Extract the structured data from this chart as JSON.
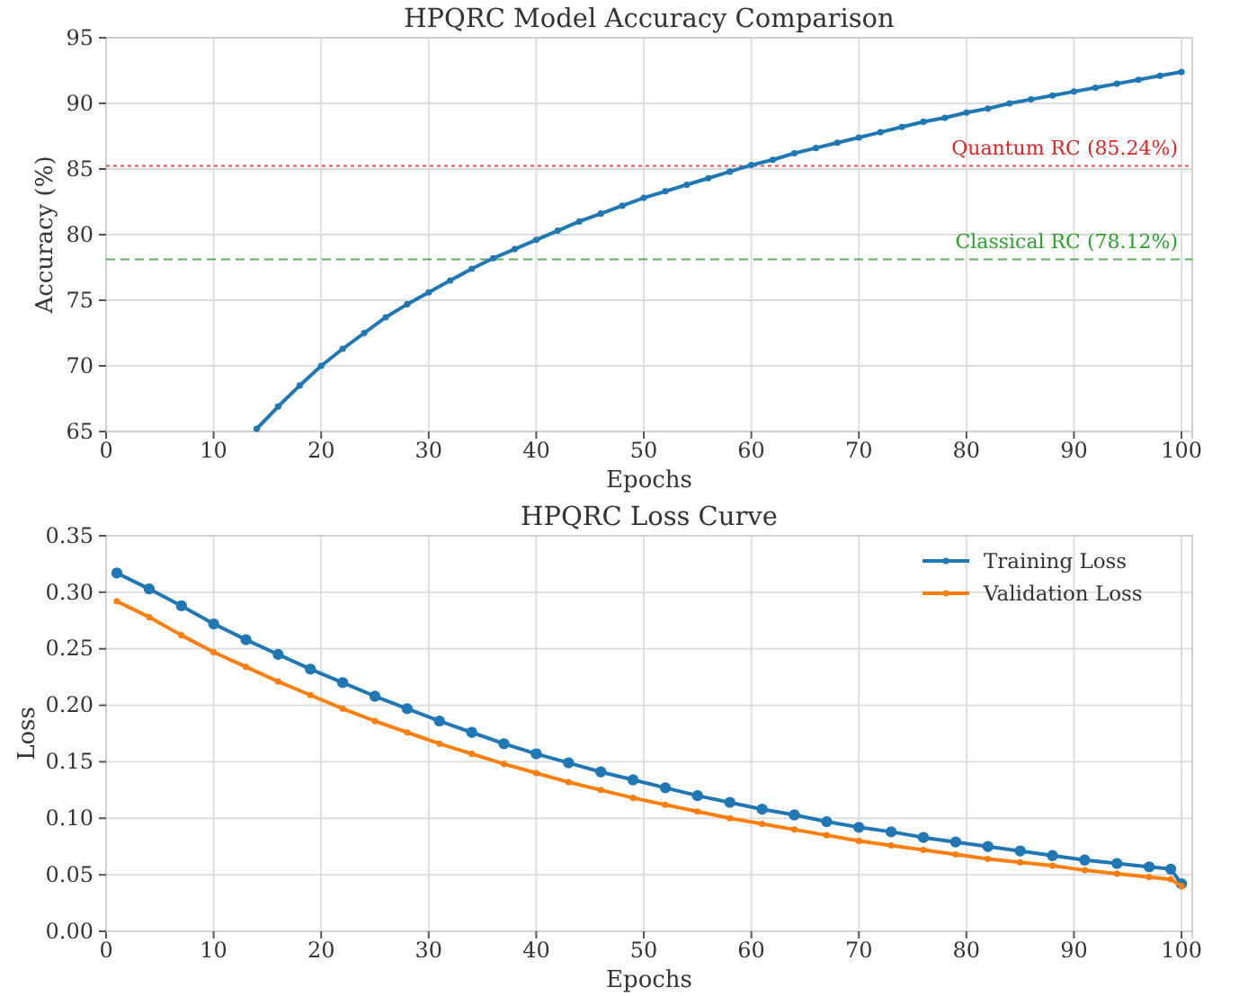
{
  "chart_data": [
    {
      "type": "line",
      "title": "HPQRC Model Accuracy Comparison",
      "xlabel": "Epochs",
      "ylabel": "Accuracy (%)",
      "x": [
        14,
        16,
        18,
        20,
        22,
        24,
        26,
        28,
        30,
        32,
        34,
        36,
        38,
        40,
        42,
        44,
        46,
        48,
        50,
        52,
        54,
        56,
        58,
        60,
        62,
        64,
        66,
        68,
        70,
        72,
        74,
        76,
        78,
        80,
        82,
        84,
        86,
        88,
        90,
        92,
        94,
        96,
        98,
        100
      ],
      "series": [
        {
          "color": "#1f77b4",
          "values": [
            65.2,
            66.9,
            68.5,
            70.0,
            71.3,
            72.5,
            73.7,
            74.7,
            75.6,
            76.5,
            77.4,
            78.2,
            78.9,
            79.6,
            80.3,
            81.0,
            81.6,
            82.2,
            82.8,
            83.3,
            83.8,
            84.3,
            84.8,
            85.3,
            85.7,
            86.2,
            86.6,
            87.0,
            87.4,
            87.8,
            88.2,
            88.6,
            88.9,
            89.3,
            89.6,
            90.0,
            90.3,
            90.6,
            90.9,
            91.2,
            91.5,
            91.8,
            92.1,
            92.4
          ]
        }
      ],
      "xlim": [
        0,
        101
      ],
      "xticks": [
        0,
        10,
        20,
        30,
        40,
        50,
        60,
        70,
        80,
        90,
        100
      ],
      "ylim": [
        65,
        95
      ],
      "yticks": [
        65,
        70,
        75,
        80,
        85,
        90,
        95
      ],
      "ref_lines": [
        {
          "axis": "y",
          "value": 85.24,
          "label": "Quantum RC (85.24%)",
          "color": "#d62728",
          "line_style": "dotted"
        },
        {
          "axis": "y",
          "value": 78.12,
          "label": "Classical RC (78.12%)",
          "color": "#2ca02c",
          "line_style": "dashed"
        }
      ],
      "grid": true,
      "marker": "circle",
      "line_style": "solid",
      "legend": false
    },
    {
      "type": "line",
      "title": "HPQRC Loss Curve",
      "xlabel": "Epochs",
      "ylabel": "Loss",
      "x": [
        1,
        4,
        7,
        10,
        13,
        16,
        19,
        22,
        25,
        28,
        31,
        34,
        37,
        40,
        43,
        46,
        49,
        52,
        55,
        58,
        61,
        64,
        67,
        70,
        73,
        76,
        79,
        82,
        85,
        88,
        91,
        94,
        97,
        99,
        100
      ],
      "series": [
        {
          "name": "Training Loss",
          "color": "#1f77b4",
          "values": [
            0.317,
            0.303,
            0.288,
            0.272,
            0.258,
            0.245,
            0.232,
            0.22,
            0.208,
            0.197,
            0.186,
            0.176,
            0.166,
            0.157,
            0.149,
            0.141,
            0.134,
            0.127,
            0.12,
            0.114,
            0.108,
            0.103,
            0.097,
            0.092,
            0.088,
            0.083,
            0.079,
            0.075,
            0.071,
            0.067,
            0.063,
            0.06,
            0.057,
            0.055,
            0.042
          ]
        },
        {
          "name": "Validation Loss",
          "color": "#ff7f0e",
          "values": [
            0.292,
            0.278,
            0.262,
            0.247,
            0.234,
            0.221,
            0.209,
            0.197,
            0.186,
            0.176,
            0.166,
            0.157,
            0.148,
            0.14,
            0.132,
            0.125,
            0.118,
            0.112,
            0.106,
            0.1,
            0.095,
            0.09,
            0.085,
            0.08,
            0.076,
            0.072,
            0.068,
            0.064,
            0.061,
            0.058,
            0.054,
            0.051,
            0.048,
            0.046,
            0.04
          ]
        }
      ],
      "xlim": [
        0,
        101
      ],
      "xticks": [
        0,
        10,
        20,
        30,
        40,
        50,
        60,
        70,
        80,
        90,
        100
      ],
      "ylim": [
        0,
        0.35
      ],
      "yticks": [
        {
          "value": 0,
          "label": "0.00"
        },
        {
          "value": 0.05,
          "label": "0.05"
        },
        {
          "value": 0.1,
          "label": "0.10"
        },
        {
          "value": 0.15,
          "label": "0.15"
        },
        {
          "value": 0.2,
          "label": "0.20"
        },
        {
          "value": 0.25,
          "label": "0.25"
        },
        {
          "value": 0.3,
          "label": "0.30"
        },
        {
          "value": 0.35,
          "label": "0.35"
        }
      ],
      "grid": true,
      "marker": "circle",
      "line_style": "solid",
      "legend": "top right"
    }
  ]
}
